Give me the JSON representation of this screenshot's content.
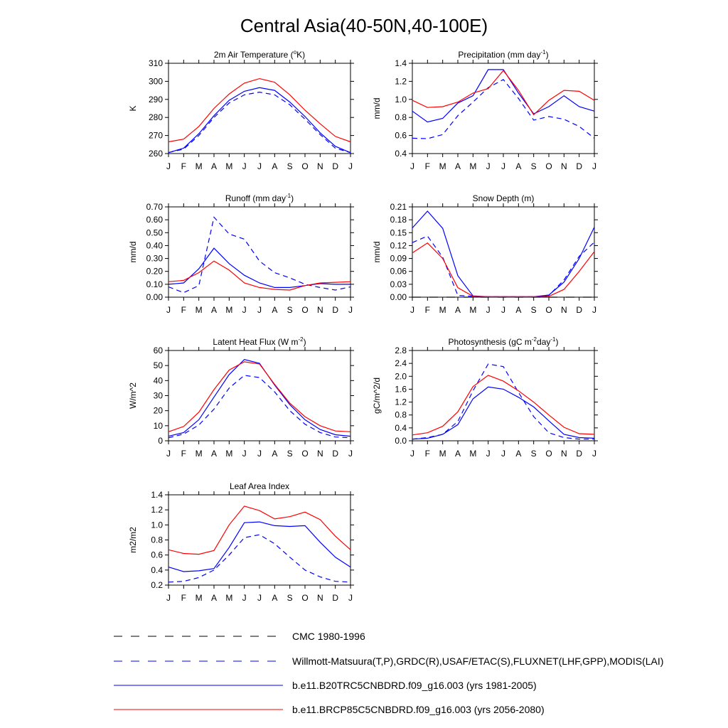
{
  "figure_title": "Central Asia(40-50N,40-100E)",
  "months": [
    "J",
    "F",
    "M",
    "A",
    "M",
    "J",
    "J",
    "A",
    "S",
    "O",
    "N",
    "D",
    "J"
  ],
  "series_styles": {
    "cmc": {
      "color": "#000000",
      "dash": "long-dash"
    },
    "obs": {
      "color": "#0000ff",
      "dash": "dash"
    },
    "model_hist": {
      "color": "#0000ff",
      "dash": "solid"
    },
    "model_fut": {
      "color": "#ff0000",
      "dash": "solid"
    }
  },
  "legend": {
    "cmc": "CMC 1980-1996",
    "obs": "Willmott-Matsuura(T,P),GRDC(R),USAF/ETAC(S),FLUXNET(LHF,GPP),MODIS(LAI)",
    "model_hist": "b.e11.B20TRC5CNBDRD.f09_g16.003 (yrs 1981-2005)",
    "model_fut": "b.e11.BRCP85C5CNBDRD.f09_g16.003 (yrs 2056-2080)"
  },
  "chart_data": [
    {
      "id": "temp",
      "type": "line",
      "title": "2m Air Temperature (°K)",
      "title_parts": {
        "a": "2m Air Temperature (",
        "sup": "o",
        "b": "K)"
      },
      "ylabel": "K",
      "ylim": [
        260,
        310
      ],
      "yticks": [
        "260",
        "270",
        "280",
        "290",
        "300",
        "310"
      ],
      "x": [
        "J",
        "F",
        "M",
        "A",
        "M",
        "J",
        "J",
        "A",
        "S",
        "O",
        "N",
        "D",
        "J"
      ],
      "series": [
        {
          "key": "obs",
          "values": [
            260.5,
            262.5,
            270,
            280,
            288,
            292.5,
            294,
            292.5,
            287,
            279,
            270.5,
            263,
            260.5
          ]
        },
        {
          "key": "model_hist",
          "values": [
            260.5,
            263,
            271,
            281,
            289.5,
            294.5,
            296.5,
            295,
            288.5,
            280.5,
            271.5,
            264,
            260.5
          ]
        },
        {
          "key": "model_fut",
          "values": [
            266.5,
            268,
            275,
            285,
            293,
            299,
            301.5,
            299.5,
            292.5,
            284,
            276.5,
            269.5,
            266.5
          ]
        }
      ]
    },
    {
      "id": "precip",
      "type": "line",
      "title": "Precipitation (mm day-1)",
      "title_parts": {
        "a": "Precipitation (mm day",
        "sup": "-1",
        "b": ")"
      },
      "ylabel": "mm/d",
      "ylim": [
        0.4,
        1.4
      ],
      "yticks": [
        "0.4",
        "0.6",
        "0.8",
        "1.0",
        "1.2",
        "1.4"
      ],
      "x": [
        "J",
        "F",
        "M",
        "A",
        "M",
        "J",
        "J",
        "A",
        "S",
        "O",
        "N",
        "D",
        "J"
      ],
      "series": [
        {
          "key": "obs",
          "values": [
            0.57,
            0.565,
            0.61,
            0.82,
            0.97,
            1.13,
            1.22,
            1.01,
            0.77,
            0.81,
            0.78,
            0.7,
            0.57
          ]
        },
        {
          "key": "model_hist",
          "values": [
            0.87,
            0.75,
            0.79,
            0.96,
            1.04,
            1.33,
            1.33,
            1.07,
            0.84,
            0.92,
            1.04,
            0.92,
            0.87
          ]
        },
        {
          "key": "model_fut",
          "values": [
            0.99,
            0.91,
            0.92,
            0.97,
            1.07,
            1.12,
            1.32,
            1.1,
            0.83,
            0.99,
            1.1,
            1.09,
            0.99
          ]
        }
      ]
    },
    {
      "id": "runoff",
      "type": "line",
      "title": "Runoff (mm day-1)",
      "title_parts": {
        "a": "Runoff (mm day",
        "sup": "-1",
        "b": ")"
      },
      "ylabel": "mm/d",
      "ylim": [
        0,
        0.7
      ],
      "yticks": [
        "0.00",
        "0.10",
        "0.20",
        "0.30",
        "0.40",
        "0.50",
        "0.60",
        "0.70"
      ],
      "x": [
        "J",
        "F",
        "M",
        "A",
        "M",
        "J",
        "J",
        "A",
        "S",
        "O",
        "N",
        "D",
        "J"
      ],
      "series": [
        {
          "key": "obs",
          "values": [
            0.08,
            0.035,
            0.09,
            0.62,
            0.49,
            0.45,
            0.28,
            0.19,
            0.15,
            0.1,
            0.075,
            0.055,
            0.08
          ]
        },
        {
          "key": "model_hist",
          "values": [
            0.1,
            0.11,
            0.22,
            0.38,
            0.26,
            0.17,
            0.11,
            0.075,
            0.075,
            0.09,
            0.105,
            0.1,
            0.1
          ]
        },
        {
          "key": "model_fut",
          "values": [
            0.12,
            0.13,
            0.19,
            0.28,
            0.21,
            0.11,
            0.075,
            0.06,
            0.055,
            0.09,
            0.11,
            0.115,
            0.12
          ]
        }
      ]
    },
    {
      "id": "snow",
      "type": "line",
      "title": "Snow Depth (m)",
      "title_parts": {
        "a": "Snow Depth (m)",
        "sup": "",
        "b": ""
      },
      "ylabel": "mm/d",
      "ylim": [
        0,
        0.21
      ],
      "yticks": [
        "0.00",
        "0.03",
        "0.06",
        "0.09",
        "0.12",
        "0.15",
        "0.18",
        "0.21"
      ],
      "x": [
        "J",
        "F",
        "M",
        "A",
        "M",
        "J",
        "J",
        "A",
        "S",
        "O",
        "N",
        "D",
        "J"
      ],
      "series": [
        {
          "key": "cmc",
          "values": [
            0,
            0,
            0,
            0,
            0,
            0,
            0,
            0,
            0,
            0,
            0,
            0,
            0
          ]
        },
        {
          "key": "obs",
          "values": [
            0.127,
            0.142,
            0.093,
            0.004,
            0.002,
            0.001,
            0.001,
            0.001,
            0.001,
            0.004,
            0.04,
            0.095,
            0.128
          ]
        },
        {
          "key": "model_hist",
          "values": [
            0.161,
            0.2,
            0.16,
            0.05,
            0.003,
            0.001,
            0.001,
            0.001,
            0.001,
            0.005,
            0.035,
            0.09,
            0.163
          ]
        },
        {
          "key": "model_fut",
          "values": [
            0.103,
            0.126,
            0.09,
            0.022,
            0.002,
            0.001,
            0.001,
            0.001,
            0.001,
            0.002,
            0.018,
            0.06,
            0.106
          ]
        }
      ]
    },
    {
      "id": "lhf",
      "type": "line",
      "title": "Latent Heat Flux (W m-2)",
      "title_parts": {
        "a": "Latent Heat Flux (W m",
        "sup": "-2",
        "b": ")"
      },
      "ylabel": "W/m^2",
      "ylim": [
        0,
        60
      ],
      "yticks": [
        "0",
        "10",
        "20",
        "30",
        "40",
        "50",
        "60"
      ],
      "x": [
        "J",
        "F",
        "M",
        "A",
        "M",
        "J",
        "J",
        "A",
        "S",
        "O",
        "N",
        "D",
        "J"
      ],
      "series": [
        {
          "key": "obs",
          "values": [
            2,
            4.5,
            10.5,
            21,
            35,
            43.5,
            42,
            32.5,
            20,
            11,
            5.5,
            2.5,
            2
          ]
        },
        {
          "key": "model_hist",
          "values": [
            3,
            5.5,
            14,
            29,
            44,
            54,
            51.5,
            37,
            24,
            14,
            7.5,
            4,
            3
          ]
        },
        {
          "key": "model_fut",
          "values": [
            6,
            9.5,
            19,
            34,
            47,
            52.5,
            51,
            37.5,
            25,
            16,
            10,
            6.5,
            6
          ]
        }
      ]
    },
    {
      "id": "gpp",
      "type": "line",
      "title": "Photosynthesis (gC m-2day-1)",
      "title_parts": {
        "a": "Photosynthesis (gC m",
        "sup": "-2",
        "b": "day",
        "sup2": "-1",
        "c": ")"
      },
      "ylabel": "gC/m^2/d",
      "ylim": [
        0,
        2.8
      ],
      "yticks": [
        "0.0",
        "0.4",
        "0.8",
        "1.2",
        "1.6",
        "2.0",
        "2.4",
        "2.8"
      ],
      "x": [
        "J",
        "F",
        "M",
        "A",
        "M",
        "J",
        "J",
        "A",
        "S",
        "O",
        "N",
        "D",
        "J"
      ],
      "series": [
        {
          "key": "obs",
          "values": [
            0.05,
            0.1,
            0.2,
            0.6,
            1.55,
            2.38,
            2.3,
            1.5,
            0.75,
            0.25,
            0.1,
            0.05,
            0.05
          ]
        },
        {
          "key": "model_hist",
          "values": [
            0.05,
            0.08,
            0.2,
            0.5,
            1.3,
            1.67,
            1.6,
            1.35,
            1.05,
            0.62,
            0.2,
            0.1,
            0.08
          ]
        },
        {
          "key": "model_fut",
          "values": [
            0.18,
            0.25,
            0.45,
            0.9,
            1.68,
            2.03,
            1.85,
            1.55,
            1.2,
            0.8,
            0.42,
            0.22,
            0.2
          ]
        }
      ]
    },
    {
      "id": "lai",
      "type": "line",
      "title": "Leaf Area Index",
      "title_parts": {
        "a": "Leaf Area Index",
        "sup": "",
        "b": ""
      },
      "ylabel": "m2/m2",
      "ylim": [
        0.2,
        1.4
      ],
      "yticks": [
        "0.2",
        "0.4",
        "0.6",
        "0.8",
        "1.0",
        "1.2",
        "1.4"
      ],
      "x": [
        "J",
        "F",
        "M",
        "A",
        "M",
        "J",
        "J",
        "A",
        "S",
        "O",
        "N",
        "D",
        "J"
      ],
      "series": [
        {
          "key": "obs",
          "values": [
            0.24,
            0.25,
            0.3,
            0.4,
            0.6,
            0.83,
            0.87,
            0.75,
            0.57,
            0.4,
            0.31,
            0.25,
            0.24
          ]
        },
        {
          "key": "model_hist",
          "values": [
            0.44,
            0.38,
            0.39,
            0.42,
            0.7,
            1.03,
            1.04,
            0.99,
            0.98,
            0.99,
            0.77,
            0.57,
            0.44
          ]
        },
        {
          "key": "model_fut",
          "values": [
            0.67,
            0.62,
            0.61,
            0.66,
            1.0,
            1.25,
            1.19,
            1.08,
            1.11,
            1.17,
            1.07,
            0.85,
            0.67
          ]
        }
      ]
    }
  ]
}
